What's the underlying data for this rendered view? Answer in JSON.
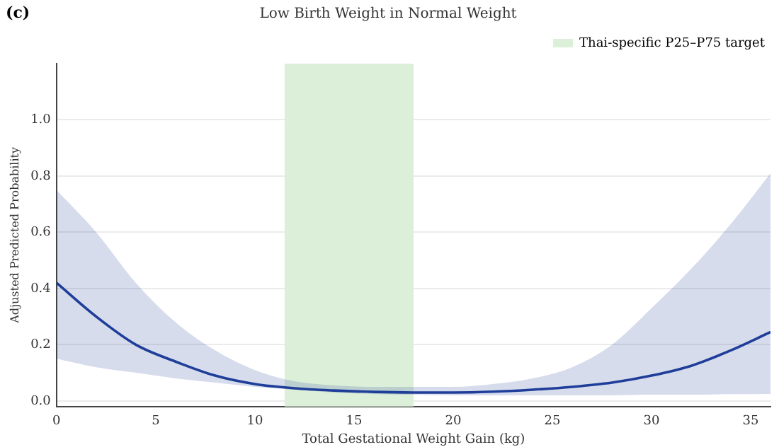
{
  "chart_data": {
    "type": "line",
    "title": "Low Birth Weight in Normal Weight",
    "xlabel": "Total Gestational Weight Gain (kg)",
    "ylabel": "Adjusted Predicted Probability",
    "annotations": [
      "(c)"
    ],
    "x": [
      0,
      2,
      4,
      6,
      8,
      10,
      12,
      14,
      16,
      18,
      20,
      22,
      24,
      26,
      28,
      30,
      32,
      34,
      36
    ],
    "series": [
      {
        "color": "#1f3f99",
        "values": [
          0.42,
          0.3,
          0.2,
          0.14,
          0.09,
          0.06,
          0.045,
          0.037,
          0.032,
          0.03,
          0.03,
          0.033,
          0.04,
          0.05,
          0.065,
          0.09,
          0.125,
          0.18,
          0.245
        ],
        "lower": [
          0.15,
          0.12,
          0.1,
          0.08,
          0.065,
          0.05,
          0.04,
          0.03,
          0.025,
          0.022,
          0.02,
          0.02,
          0.02,
          0.02,
          0.02,
          0.022,
          0.022,
          0.024,
          0.025
        ],
        "upper": [
          0.75,
          0.6,
          0.42,
          0.28,
          0.18,
          0.11,
          0.07,
          0.055,
          0.05,
          0.05,
          0.05,
          0.06,
          0.08,
          0.12,
          0.2,
          0.33,
          0.47,
          0.63,
          0.81
        ]
      }
    ],
    "bands": [
      {
        "axis": "x",
        "from": 11.5,
        "to": 18,
        "label": "Thai-specific P25–P75 target",
        "color": "#dcefd9"
      }
    ],
    "xlim": [
      0,
      36
    ],
    "xticks": [
      0,
      5,
      10,
      15,
      20,
      25,
      30,
      35
    ],
    "ylim": [
      -0.02,
      1.2
    ],
    "yticks": [
      {
        "value": 0,
        "label": "0.0"
      },
      {
        "value": 0.2,
        "label": "0.2"
      },
      {
        "value": 0.4,
        "label": "0.4"
      },
      {
        "value": 0.6,
        "label": "0.6"
      },
      {
        "value": 0.8,
        "label": "0.8"
      },
      {
        "value": 1,
        "label": "1.0"
      }
    ],
    "grid": "y",
    "legend": "top right",
    "marker": "none",
    "line_style": "solid"
  }
}
